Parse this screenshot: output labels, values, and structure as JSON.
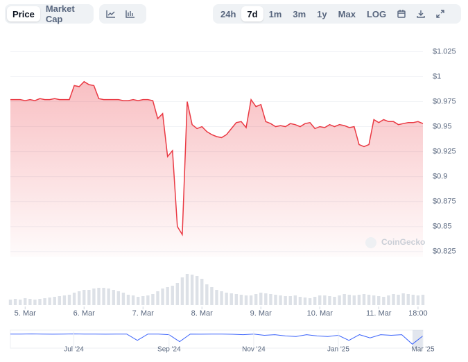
{
  "controls": {
    "metrics": [
      "Price",
      "Market Cap"
    ],
    "ranges": [
      "24h",
      "7d",
      "1m",
      "3m",
      "1y",
      "Max",
      "LOG"
    ],
    "watermark": "CoinGecko"
  },
  "chart_data": {
    "type": "line",
    "color": "#ea3943",
    "grid": true,
    "values": [
      0.977,
      0.977,
      0.977,
      0.976,
      0.977,
      0.976,
      0.978,
      0.977,
      0.977,
      0.978,
      0.977,
      0.977,
      0.977,
      0.991,
      0.99,
      0.995,
      0.992,
      0.991,
      0.978,
      0.977,
      0.977,
      0.977,
      0.977,
      0.976,
      0.976,
      0.977,
      0.976,
      0.977,
      0.977,
      0.976,
      0.958,
      0.963,
      0.92,
      0.926,
      0.85,
      0.842,
      0.975,
      0.952,
      0.948,
      0.95,
      0.945,
      0.942,
      0.94,
      0.939,
      0.942,
      0.948,
      0.954,
      0.955,
      0.949,
      0.977,
      0.97,
      0.972,
      0.955,
      0.953,
      0.95,
      0.951,
      0.95,
      0.953,
      0.952,
      0.95,
      0.953,
      0.954,
      0.948,
      0.95,
      0.949,
      0.952,
      0.95,
      0.952,
      0.951,
      0.949,
      0.95,
      0.932,
      0.93,
      0.932,
      0.957,
      0.954,
      0.957,
      0.955,
      0.955,
      0.952,
      0.953,
      0.954,
      0.954,
      0.955,
      0.953
    ],
    "xlim": [
      0,
      84
    ],
    "xticks": [
      {
        "value": 3,
        "label": "5. Mar"
      },
      {
        "value": 15,
        "label": "6. Mar"
      },
      {
        "value": 27,
        "label": "7. Mar"
      },
      {
        "value": 39,
        "label": "8. Mar"
      },
      {
        "value": 51,
        "label": "9. Mar"
      },
      {
        "value": 63,
        "label": "10. Mar"
      },
      {
        "value": 75,
        "label": "11. Mar"
      },
      {
        "value": 83,
        "label": "18:00"
      }
    ],
    "ylim": [
      0.82,
      1.035
    ],
    "yticks": [
      {
        "value": 0.825,
        "label": "$0.825"
      },
      {
        "value": 0.85,
        "label": "$0.85"
      },
      {
        "value": 0.875,
        "label": "$0.875"
      },
      {
        "value": 0.9,
        "label": "$0.9"
      },
      {
        "value": 0.925,
        "label": "$0.925"
      },
      {
        "value": 0.95,
        "label": "$0.95"
      },
      {
        "value": 0.975,
        "label": "$0.975"
      },
      {
        "value": 1,
        "label": "$1"
      },
      {
        "value": 1.025,
        "label": "$1.025"
      }
    ],
    "volume": [
      8,
      9,
      8,
      10,
      9,
      8,
      9,
      10,
      11,
      12,
      13,
      14,
      15,
      18,
      20,
      22,
      22,
      24,
      25,
      25,
      24,
      22,
      20,
      18,
      15,
      14,
      12,
      13,
      14,
      16,
      20,
      24,
      26,
      28,
      32,
      40,
      45,
      44,
      42,
      38,
      30,
      26,
      22,
      20,
      18,
      17,
      16,
      15,
      14,
      14,
      16,
      18,
      17,
      16,
      15,
      14,
      13,
      13,
      14,
      12,
      11,
      10,
      12,
      14,
      14,
      13,
      12,
      14,
      16,
      15,
      14,
      15,
      16,
      15,
      14,
      13,
      12,
      14,
      16,
      15,
      17,
      16,
      15,
      14,
      15
    ],
    "volume_ylim": [
      0,
      50
    ],
    "navigator": {
      "values": [
        0.98,
        0.98,
        0.981,
        0.98,
        0.979,
        0.98,
        0.981,
        0.98,
        0.98,
        0.979,
        0.98,
        0.98,
        0.93,
        0.98,
        0.98,
        0.975,
        0.92,
        0.98,
        0.979,
        0.98,
        0.98,
        0.978,
        0.975,
        0.98,
        0.97,
        0.975,
        0.965,
        0.96,
        0.975,
        0.965,
        0.96,
        0.97,
        0.93,
        0.975,
        0.95,
        0.975,
        0.97,
        0.975,
        0.9,
        0.965
      ],
      "ylim": [
        0.88,
        1.0
      ],
      "xlim": [
        0,
        39
      ],
      "xticks": [
        {
          "value": 6,
          "label": "Jul '24"
        },
        {
          "value": 15,
          "label": "Sep '24"
        },
        {
          "value": 23,
          "label": "Nov '24"
        },
        {
          "value": 31,
          "label": "Jan '25"
        },
        {
          "value": 39,
          "label": "Mar '25"
        }
      ]
    }
  }
}
